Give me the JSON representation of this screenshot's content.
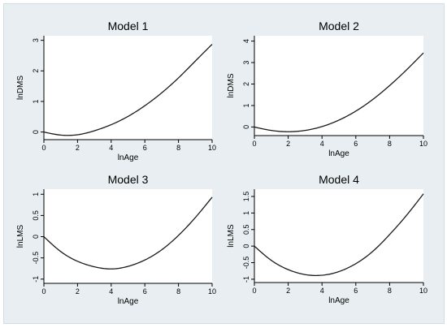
{
  "chart_data": [
    {
      "type": "line",
      "title": "Model 1",
      "xlabel": "lnAge",
      "ylabel": "lnDMS",
      "xlim": [
        0,
        10
      ],
      "ylim": [
        -0.25,
        3.15
      ],
      "xticks": [
        "0",
        "2",
        "4",
        "6",
        "8",
        "10"
      ],
      "yticks": [
        "0",
        "1",
        "2",
        "3"
      ],
      "grid": false,
      "series": [
        {
          "x": [
            0,
            1,
            1.5,
            2,
            3,
            4,
            5,
            6,
            7,
            8,
            9,
            10
          ],
          "y": [
            0,
            -0.1,
            -0.11,
            -0.09,
            0.04,
            0.24,
            0.51,
            0.86,
            1.28,
            1.77,
            2.32,
            2.87
          ]
        }
      ]
    },
    {
      "type": "line",
      "title": "Model 2",
      "xlabel": "lnAge",
      "ylabel": "lnDMS",
      "xlim": [
        0,
        10
      ],
      "ylim": [
        -0.4,
        4.25
      ],
      "xticks": [
        "0",
        "2",
        "4",
        "6",
        "8",
        "10"
      ],
      "yticks": [
        "0",
        "1",
        "2",
        "3",
        "4"
      ],
      "grid": false,
      "series": [
        {
          "x": [
            0,
            1,
            2,
            3,
            4,
            5,
            6,
            7,
            8,
            9,
            10
          ],
          "y": [
            0,
            -0.16,
            -0.22,
            -0.16,
            0.02,
            0.32,
            0.74,
            1.28,
            1.93,
            2.66,
            3.45
          ]
        }
      ]
    },
    {
      "type": "line",
      "title": "Model 3",
      "xlabel": "lnAge",
      "ylabel": "lnLMS",
      "xlim": [
        0,
        10
      ],
      "ylim": [
        -1.1,
        1.12
      ],
      "xticks": [
        "0",
        "2",
        "4",
        "6",
        "8",
        "10"
      ],
      "yticks": [
        "-1",
        "-0.5",
        "0",
        "0.5",
        "1"
      ],
      "grid": false,
      "series": [
        {
          "x": [
            0,
            1,
            2,
            3,
            4,
            5,
            6,
            7,
            8,
            9,
            10
          ],
          "y": [
            0,
            -0.35,
            -0.58,
            -0.71,
            -0.76,
            -0.7,
            -0.55,
            -0.31,
            0.03,
            0.45,
            0.93
          ]
        }
      ]
    },
    {
      "type": "line",
      "title": "Model 4",
      "xlabel": "lnAge",
      "ylabel": "lnLMS",
      "xlim": [
        0,
        10
      ],
      "ylim": [
        -1.1,
        1.72
      ],
      "xticks": [
        "0",
        "2",
        "4",
        "6",
        "8",
        "10"
      ],
      "yticks": [
        "-1",
        "-0.5",
        "0",
        "0.5",
        "1",
        "1.5"
      ],
      "grid": false,
      "series": [
        {
          "x": [
            0,
            1,
            2,
            3,
            4,
            5,
            6,
            7,
            8,
            9,
            10
          ],
          "y": [
            0,
            -0.43,
            -0.71,
            -0.86,
            -0.88,
            -0.77,
            -0.53,
            -0.16,
            0.35,
            0.93,
            1.58
          ]
        }
      ]
    }
  ],
  "colors": {
    "figure_background": "#e8eef1",
    "plot_background": "#ffffff",
    "curve": "#1a1a1a"
  }
}
